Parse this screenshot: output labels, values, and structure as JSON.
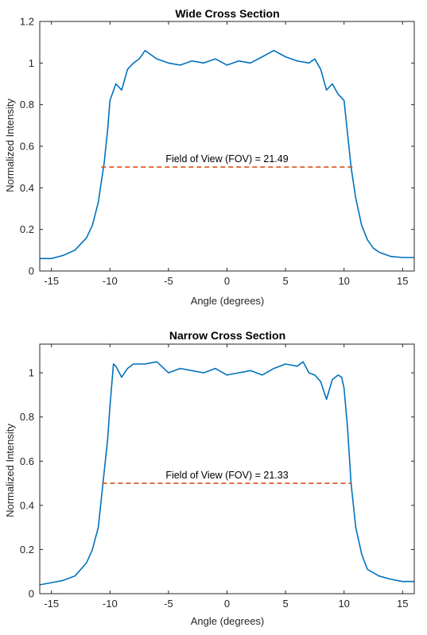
{
  "chart_data": [
    {
      "type": "line",
      "title": "Wide Cross Section",
      "xlabel": "Angle (degrees)",
      "ylabel": "Normalized Intensity",
      "xlim": [
        -16,
        16
      ],
      "ylim": [
        0,
        1.2
      ],
      "xticks": [
        -15,
        -10,
        -5,
        0,
        5,
        10,
        15
      ],
      "yticks": [
        0,
        0.2,
        0.4,
        0.6,
        0.8,
        1,
        1.2
      ],
      "grid": false,
      "series_color": "#0072BD",
      "annotation_color": "#D95319",
      "series": [
        {
          "x": [
            -16,
            -15,
            -14,
            -13,
            -12,
            -11.5,
            -11,
            -10.5,
            -10.2,
            -10,
            -9.5,
            -9,
            -8.5,
            -8,
            -7.5,
            -7,
            -6.5,
            -6,
            -5,
            -4,
            -3,
            -2,
            -1,
            0,
            1,
            2,
            3,
            4,
            5,
            6,
            7,
            7.5,
            8,
            8.5,
            9,
            9.5,
            10,
            10.3,
            10.6,
            11,
            11.5,
            12,
            12.5,
            13,
            14,
            15,
            16
          ],
          "y": [
            0.06,
            0.06,
            0.075,
            0.1,
            0.16,
            0.22,
            0.33,
            0.52,
            0.68,
            0.82,
            0.9,
            0.87,
            0.97,
            1.0,
            1.02,
            1.06,
            1.04,
            1.02,
            1.0,
            0.99,
            1.01,
            1.0,
            1.02,
            0.99,
            1.01,
            1.0,
            1.03,
            1.06,
            1.03,
            1.01,
            1.0,
            1.02,
            0.97,
            0.87,
            0.9,
            0.85,
            0.82,
            0.66,
            0.5,
            0.35,
            0.22,
            0.15,
            0.11,
            0.09,
            0.07,
            0.065,
            0.065
          ]
        }
      ],
      "fov": {
        "x": [
          -10.75,
          10.75
        ],
        "y": 0.5,
        "label": "Field of View (FOV) = 21.49"
      }
    },
    {
      "type": "line",
      "title": "Narrow Cross Section",
      "xlabel": "Angle (degrees)",
      "ylabel": "Normalized Intensity",
      "xlim": [
        -16,
        16
      ],
      "ylim": [
        0,
        1.13
      ],
      "xticks": [
        -15,
        -10,
        -5,
        0,
        5,
        10,
        15
      ],
      "yticks": [
        0,
        0.2,
        0.4,
        0.6,
        0.8,
        1
      ],
      "grid": false,
      "series_color": "#0072BD",
      "annotation_color": "#D95319",
      "series": [
        {
          "x": [
            -16,
            -15,
            -14,
            -13,
            -12,
            -11.5,
            -11,
            -10.6,
            -10.2,
            -10,
            -9.7,
            -9.5,
            -9,
            -8.5,
            -8,
            -7,
            -6,
            -5,
            -4,
            -3,
            -2,
            -1,
            0,
            1,
            2,
            3,
            4,
            5,
            6,
            6.5,
            7,
            7.5,
            8,
            8.5,
            9,
            9.5,
            9.8,
            10,
            10.3,
            10.6,
            11,
            11.5,
            12,
            13,
            14,
            15,
            16
          ],
          "y": [
            0.04,
            0.05,
            0.06,
            0.08,
            0.14,
            0.2,
            0.3,
            0.5,
            0.7,
            0.85,
            1.04,
            1.03,
            0.98,
            1.02,
            1.04,
            1.04,
            1.05,
            1.0,
            1.02,
            1.01,
            1.0,
            1.02,
            0.99,
            1.0,
            1.01,
            0.99,
            1.02,
            1.04,
            1.03,
            1.05,
            1.0,
            0.99,
            0.96,
            0.88,
            0.97,
            0.99,
            0.98,
            0.93,
            0.75,
            0.5,
            0.3,
            0.18,
            0.11,
            0.08,
            0.065,
            0.055,
            0.055
          ]
        }
      ],
      "fov": {
        "x": [
          -10.67,
          10.67
        ],
        "y": 0.5,
        "label": "Field of View (FOV) = 21.33"
      }
    }
  ]
}
